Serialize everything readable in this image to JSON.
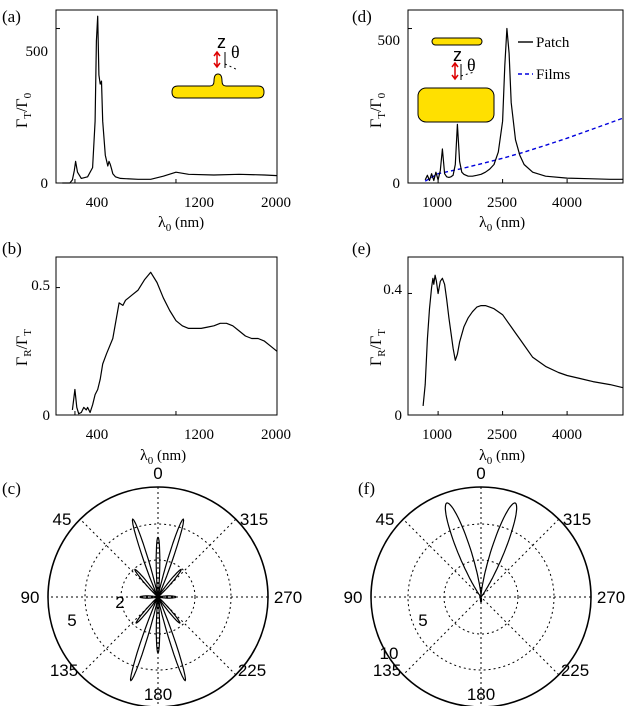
{
  "colors": {
    "films": "#0000dd",
    "patch": "#000000",
    "geometry": "#ffe000",
    "dipole_arrow": "#dd0000"
  },
  "chart_data": [
    {
      "panel": "(a)",
      "type": "line",
      "ylabel": "Γ_T/Γ_0",
      "xlabel": "λ_0 (nm)",
      "xlim": [
        250,
        2000
      ],
      "ylim": [
        0,
        560
      ],
      "xticks": [
        400,
        1200,
        2000
      ],
      "yticks": [
        0,
        500
      ],
      "inset": {
        "axis_label": "z",
        "angle_label": "θ"
      },
      "series": [
        {
          "x": [
            300,
            360,
            380,
            395,
            405,
            420,
            450,
            500,
            540,
            560,
            570,
            580,
            590,
            600,
            610,
            620,
            640,
            660,
            670,
            680,
            690,
            700,
            720,
            760,
            800,
            900,
            1000,
            1100,
            1200,
            1300,
            1500,
            1700,
            1900,
            2000
          ],
          "y": [
            0,
            0,
            10,
            40,
            70,
            35,
            15,
            20,
            50,
            200,
            460,
            540,
            350,
            320,
            330,
            200,
            90,
            55,
            70,
            60,
            45,
            30,
            20,
            15,
            14,
            12,
            12,
            22,
            35,
            28,
            26,
            28,
            26,
            24
          ]
        }
      ]
    },
    {
      "panel": "(b)",
      "type": "line",
      "ylabel": "Γ_R/Γ_T",
      "xlabel": "λ_0 (nm)",
      "xlim": [
        250,
        2000
      ],
      "ylim": [
        0,
        0.62
      ],
      "xticks": [
        400,
        1200,
        2000
      ],
      "yticks": [
        0,
        0.5
      ],
      "series": [
        {
          "x": [
            380,
            400,
            415,
            430,
            450,
            470,
            490,
            500,
            520,
            540,
            560,
            580,
            600,
            620,
            650,
            700,
            750,
            780,
            800,
            850,
            900,
            950,
            1000,
            1050,
            1100,
            1150,
            1200,
            1250,
            1300,
            1350,
            1400,
            1450,
            1500,
            1550,
            1600,
            1650,
            1700,
            1750,
            1800,
            1850,
            1900,
            1950,
            2000
          ],
          "y": [
            0.02,
            0.1,
            0.03,
            0.005,
            0.01,
            0.03,
            0.02,
            0.03,
            0.01,
            0.04,
            0.08,
            0.1,
            0.14,
            0.2,
            0.24,
            0.3,
            0.44,
            0.43,
            0.45,
            0.47,
            0.49,
            0.53,
            0.56,
            0.52,
            0.46,
            0.41,
            0.37,
            0.35,
            0.34,
            0.34,
            0.34,
            0.345,
            0.35,
            0.36,
            0.36,
            0.35,
            0.33,
            0.31,
            0.3,
            0.3,
            0.29,
            0.27,
            0.25
          ]
        }
      ]
    },
    {
      "panel": "(c)",
      "type": "polar",
      "angle_labels": [
        "0",
        "45",
        "90",
        "135",
        "180",
        "225",
        "270",
        "315"
      ],
      "radial_labels": [
        "2",
        "5"
      ],
      "rlim": [
        0,
        6
      ]
    },
    {
      "panel": "(d)",
      "type": "line",
      "ylabel": "Γ_T/Γ_0",
      "xlabel": "λ_0 (nm)",
      "xlim": [
        300,
        5300
      ],
      "ylim": [
        0,
        560
      ],
      "xticks": [
        1000,
        2500,
        4000
      ],
      "yticks": [
        0,
        500
      ],
      "inset": {
        "axis_label": "z",
        "angle_label": "θ"
      },
      "series": [
        {
          "name": "Patch",
          "x": [
            700,
            750,
            800,
            850,
            900,
            950,
            1000,
            1050,
            1100,
            1150,
            1200,
            1250,
            1300,
            1350,
            1400,
            1450,
            1500,
            1550,
            1600,
            1650,
            1700,
            1800,
            1900,
            2000,
            2100,
            2200,
            2300,
            2400,
            2500,
            2550,
            2600,
            2650,
            2700,
            2800,
            2900,
            3000,
            3200,
            3500,
            4000,
            4500,
            5000,
            5300
          ],
          "y": [
            10,
            25,
            8,
            30,
            8,
            35,
            10,
            40,
            110,
            30,
            20,
            18,
            20,
            25,
            60,
            190,
            70,
            35,
            28,
            25,
            22,
            22,
            25,
            28,
            35,
            45,
            60,
            100,
            200,
            380,
            500,
            420,
            260,
            140,
            90,
            60,
            35,
            22,
            16,
            14,
            12,
            12
          ]
        },
        {
          "name": "Films",
          "x": [
            700,
            1000,
            1500,
            2000,
            2500,
            3000,
            3500,
            4000,
            4500,
            5000,
            5300
          ],
          "y": [
            6,
            30,
            45,
            62,
            80,
            100,
            122,
            145,
            170,
            195,
            210
          ]
        }
      ]
    },
    {
      "panel": "(e)",
      "type": "line",
      "ylabel": "Γ_R/Γ_T",
      "xlabel": "λ_0 (nm)",
      "xlim": [
        300,
        5300
      ],
      "ylim": [
        0,
        0.52
      ],
      "xticks": [
        1000,
        2500,
        4000
      ],
      "yticks": [
        0,
        0.4
      ],
      "series": [
        {
          "x": [
            650,
            700,
            750,
            800,
            850,
            880,
            900,
            930,
            960,
            1000,
            1050,
            1100,
            1150,
            1200,
            1250,
            1300,
            1350,
            1400,
            1450,
            1500,
            1600,
            1700,
            1800,
            1900,
            2000,
            2100,
            2200,
            2300,
            2400,
            2500,
            2600,
            2700,
            2800,
            2900,
            3000,
            3200,
            3500,
            3800,
            4000,
            4300,
            4600,
            5000,
            5300
          ],
          "y": [
            0.03,
            0.1,
            0.25,
            0.35,
            0.42,
            0.45,
            0.43,
            0.46,
            0.44,
            0.4,
            0.44,
            0.45,
            0.43,
            0.38,
            0.32,
            0.27,
            0.22,
            0.18,
            0.2,
            0.24,
            0.29,
            0.32,
            0.34,
            0.355,
            0.36,
            0.36,
            0.355,
            0.35,
            0.34,
            0.33,
            0.31,
            0.29,
            0.27,
            0.25,
            0.23,
            0.19,
            0.16,
            0.14,
            0.13,
            0.12,
            0.11,
            0.1,
            0.09
          ]
        }
      ]
    },
    {
      "panel": "(f)",
      "type": "polar",
      "angle_labels": [
        "0",
        "45",
        "90",
        "135",
        "180",
        "225",
        "270",
        "315"
      ],
      "radial_labels": [
        "5",
        "10"
      ],
      "rlim": [
        0,
        15
      ]
    }
  ]
}
